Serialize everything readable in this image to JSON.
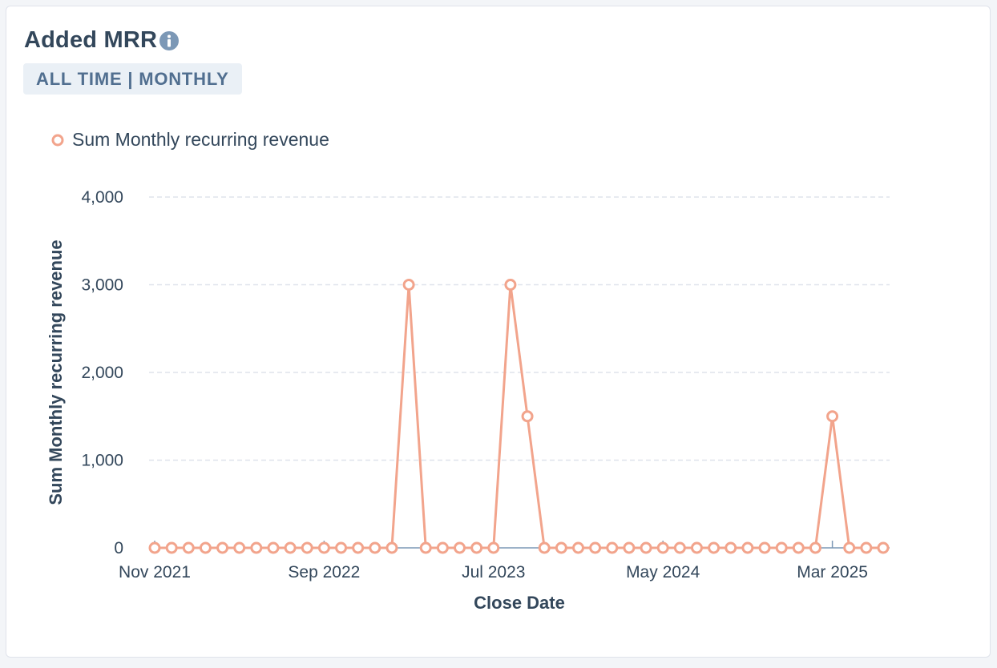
{
  "card": {
    "title": "Added MRR",
    "badge": "ALL TIME | MONTHLY"
  },
  "icons": {
    "info": "info-icon"
  },
  "colors": {
    "series": "#f2a48c",
    "text": "#33475b",
    "badge_bg": "#eaf0f6",
    "badge_text": "#516f90",
    "grid": "#dfe3eb"
  },
  "chart_data": {
    "type": "line",
    "title": "",
    "xlabel": "Close Date",
    "ylabel": "Sum Monthly recurring revenue",
    "ylim": [
      0,
      4000
    ],
    "yticks": [
      0,
      1000,
      2000,
      3000,
      4000
    ],
    "ytick_labels": [
      "0",
      "1,000",
      "2,000",
      "3,000",
      "4,000"
    ],
    "xtick_labels": [
      "Nov 2021",
      "Sep 2022",
      "Jul 2023",
      "May 2024",
      "Mar 2025"
    ],
    "grid": true,
    "legend_position": "top-left",
    "x": [
      "Nov 2021",
      "Dec 2021",
      "Jan 2022",
      "Feb 2022",
      "Mar 2022",
      "Apr 2022",
      "May 2022",
      "Jun 2022",
      "Jul 2022",
      "Aug 2022",
      "Sep 2022",
      "Oct 2022",
      "Nov 2022",
      "Dec 2022",
      "Jan 2023",
      "Feb 2023",
      "Mar 2023",
      "Apr 2023",
      "May 2023",
      "Jun 2023",
      "Jul 2023",
      "Aug 2023",
      "Sep 2023",
      "Oct 2023",
      "Nov 2023",
      "Dec 2023",
      "Jan 2024",
      "Feb 2024",
      "Mar 2024",
      "Apr 2024",
      "May 2024",
      "Jun 2024",
      "Jul 2024",
      "Aug 2024",
      "Sep 2024",
      "Oct 2024",
      "Nov 2024",
      "Dec 2024",
      "Jan 2025",
      "Feb 2025",
      "Mar 2025",
      "Apr 2025",
      "May 2025",
      "Jun 2025"
    ],
    "series": [
      {
        "name": "Sum Monthly recurring revenue",
        "values": [
          0,
          0,
          0,
          0,
          0,
          0,
          0,
          0,
          0,
          0,
          0,
          0,
          0,
          0,
          0,
          3000,
          0,
          0,
          0,
          0,
          0,
          3000,
          1500,
          0,
          0,
          0,
          0,
          0,
          0,
          0,
          0,
          0,
          0,
          0,
          0,
          0,
          0,
          0,
          0,
          0,
          1500,
          0,
          0,
          0
        ]
      }
    ]
  }
}
